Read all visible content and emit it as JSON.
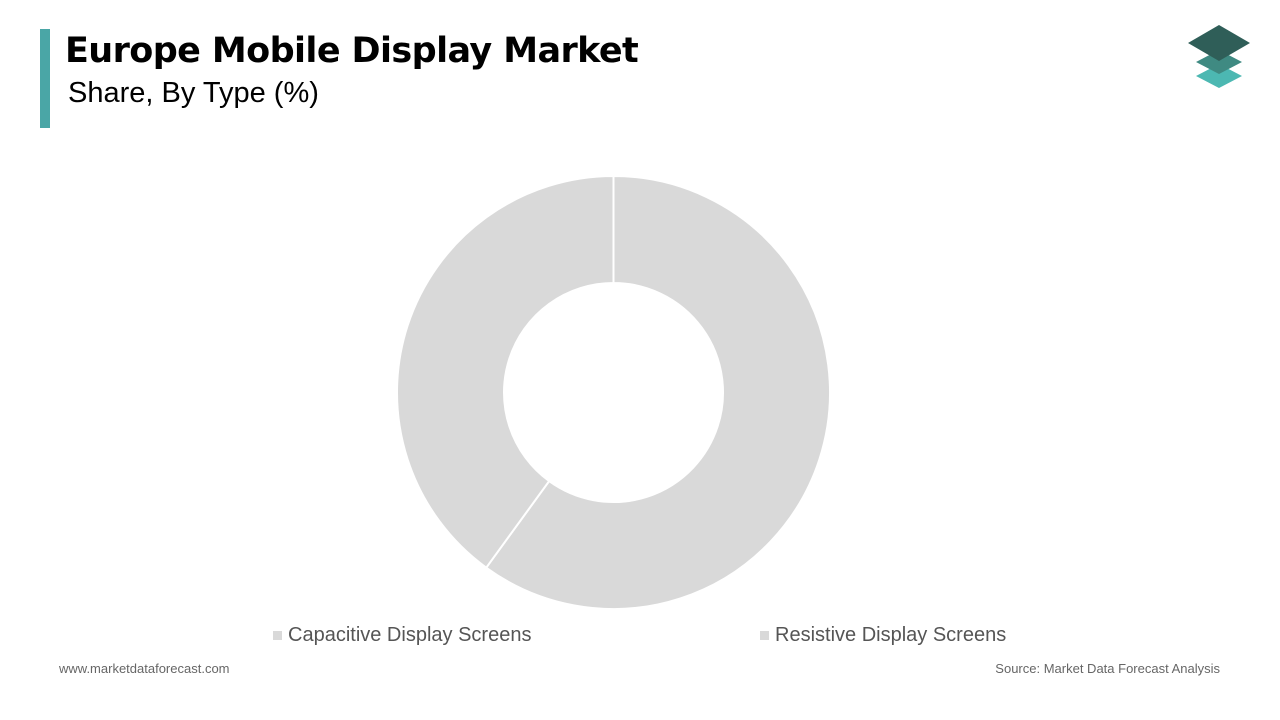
{
  "header": {
    "title": "Europe Mobile Display Market",
    "subtitle": "Share, By Type (%)",
    "accent_color": "#4aa6a6"
  },
  "logo": {
    "icon": "stacked-layers-logo-icon",
    "colors": [
      "#2f5e58",
      "#3f8a82",
      "#4cb8b2"
    ]
  },
  "chart_data": {
    "type": "pie",
    "donut": true,
    "title": "",
    "categories": [
      "Capacitive Display Screens",
      "Resistive Display Screens"
    ],
    "values": [
      60,
      40
    ],
    "colors": [
      "#d9d9d9",
      "#d9d9d9"
    ],
    "legend": "bottom"
  },
  "legend": {
    "items": [
      {
        "label": "Capacitive Display Screens",
        "color": "#d9d9d9"
      },
      {
        "label": "Resistive Display Screens",
        "color": "#d9d9d9"
      }
    ]
  },
  "footer": {
    "website": "www.marketdataforecast.com",
    "source": "Source: Market Data Forecast Analysis"
  }
}
